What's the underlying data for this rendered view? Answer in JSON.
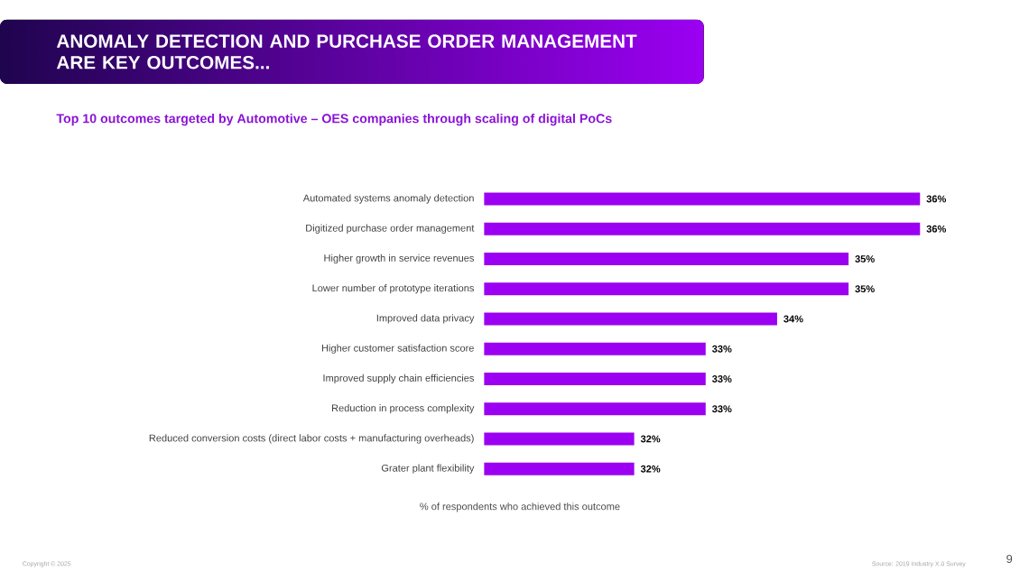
{
  "chart_data": {
    "type": "bar",
    "orientation": "horizontal",
    "title": "ANOMALY DETECTION AND PURCHASE ORDER MANAGEMENT ARE KEY OUTCOMES...",
    "subtitle": "Top 10 outcomes targeted by Automotive – OES companies through scaling of digital PoCs",
    "xlabel": "% of respondents who achieved this outcome",
    "categories": [
      "Automated systems anomaly detection",
      "Digitized purchase order management",
      "Higher growth in service revenues",
      "Lower number of prototype iterations",
      "Improved data privacy",
      "Higher customer satisfaction score",
      "Improved supply chain efficiencies",
      "Reduction in process complexity",
      "Reduced conversion costs (direct labor costs + manufacturing overheads)",
      "Grater plant flexibility"
    ],
    "values": [
      36,
      36,
      35,
      35,
      34,
      33,
      33,
      33,
      32,
      32
    ],
    "value_labels": [
      "36%",
      "36%",
      "35%",
      "35%",
      "34%",
      "33%",
      "33%",
      "33%",
      "32%",
      "32%"
    ],
    "color": "#9b00f2",
    "xlim": [
      29.9,
      36
    ],
    "tick_labels": "y",
    "annotations": [
      "Copyright © 2025",
      "Source: 2019 Industry X.0 Survey",
      "9"
    ]
  }
}
